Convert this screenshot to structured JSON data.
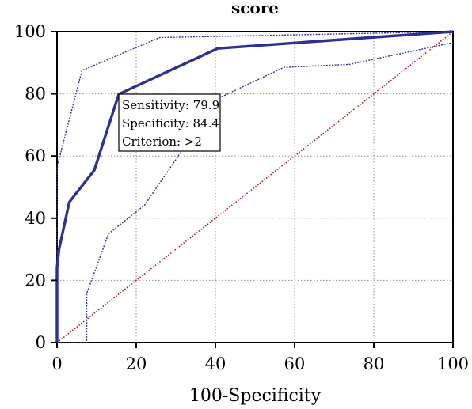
{
  "chart_data": {
    "type": "line",
    "title": "score",
    "xlabel": "100-Specificity",
    "ylabel": "",
    "xlim": [
      0,
      100
    ],
    "ylim": [
      0,
      100
    ],
    "xticks": [
      0,
      20,
      40,
      60,
      80,
      100
    ],
    "yticks": [
      0,
      20,
      40,
      60,
      80,
      100
    ],
    "grid": true,
    "series": [
      {
        "role": "roc",
        "color": "#2e3192",
        "points": [
          [
            0,
            0
          ],
          [
            0,
            24
          ],
          [
            0.5,
            30
          ],
          [
            3.1,
            45.2
          ],
          [
            9.4,
            55.4
          ],
          [
            15.6,
            79.9
          ],
          [
            40.6,
            94.6
          ],
          [
            100,
            100
          ]
        ]
      },
      {
        "role": "ci-upper",
        "color": "#2e3192",
        "points": [
          [
            0,
            0
          ],
          [
            0,
            56.5
          ],
          [
            6.3,
            87.5
          ],
          [
            25.9,
            98.1
          ],
          [
            100,
            100
          ]
        ]
      },
      {
        "role": "ci-lower",
        "color": "#2e3192",
        "points": [
          [
            0,
            0
          ],
          [
            7.5,
            0
          ],
          [
            7.5,
            15.8
          ],
          [
            13,
            35
          ],
          [
            22.1,
            44.2
          ],
          [
            40.6,
            78.5
          ],
          [
            57.3,
            88.5
          ],
          [
            74,
            89.5
          ],
          [
            100,
            96.5
          ]
        ]
      },
      {
        "role": "reference",
        "color": "#a11d21",
        "points": [
          [
            0,
            0
          ],
          [
            100,
            100
          ]
        ]
      }
    ],
    "annotation": {
      "point": [
        15.6,
        79.9
      ],
      "lines": [
        "Sensitivity: 79.9",
        "Specificity: 84.4",
        "Criterion: >2"
      ]
    }
  }
}
